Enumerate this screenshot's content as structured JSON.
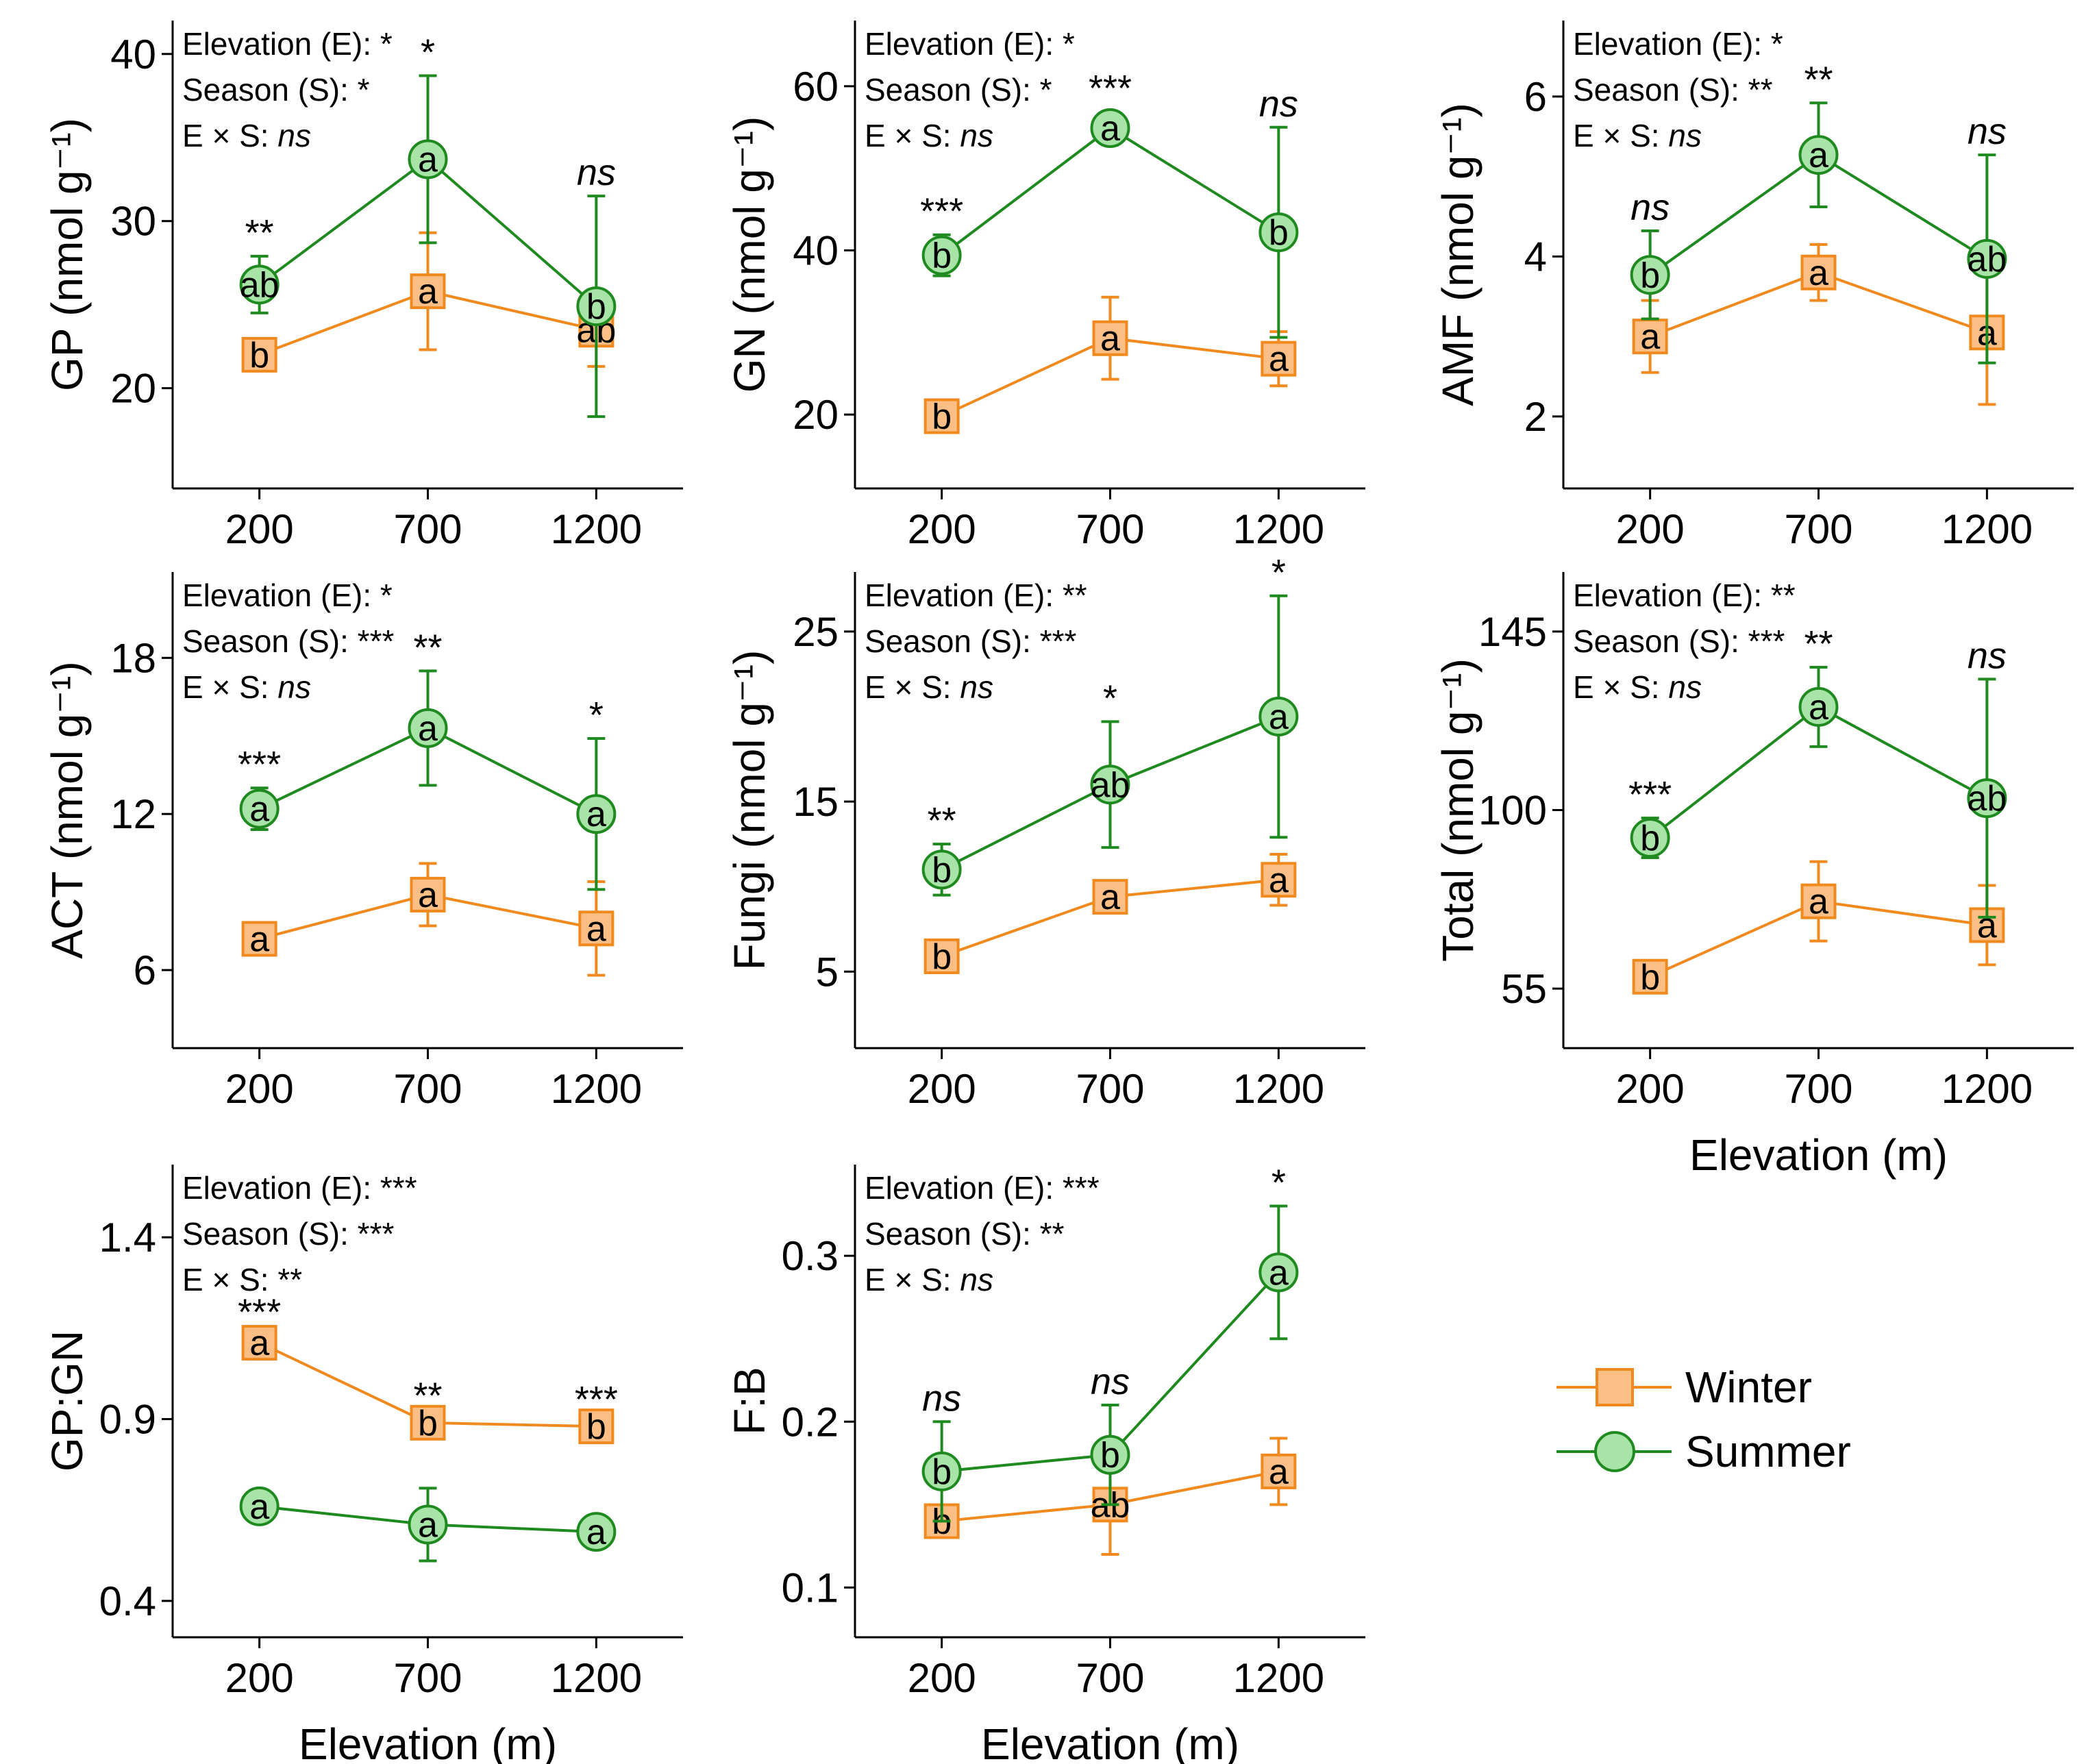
{
  "colors": {
    "winter_line": "#f08a1f",
    "winter_fill": "#fbbf86",
    "summer_line": "#1f8a1f",
    "summer_fill": "#a8e3a8"
  },
  "legend": [
    {
      "label": "Winter",
      "marker": "square"
    },
    {
      "label": "Summer",
      "marker": "circle"
    }
  ],
  "chart_data": [
    {
      "id": "gp",
      "type": "line",
      "ylabel": "GP (nmol g⁻¹)",
      "xlabel": "",
      "categories": [
        "200",
        "700",
        "1200"
      ],
      "ylim": [
        14,
        42
      ],
      "yticks": [
        20,
        30,
        40
      ],
      "stats": [
        "Elevation (E): *",
        "Season (S): *",
        "E × S: ns"
      ],
      "series": [
        {
          "name": "Winter",
          "values": [
            22.0,
            25.8,
            23.5
          ],
          "err": [
            0.8,
            3.5,
            2.2
          ],
          "letters": [
            "b",
            "a",
            "ab"
          ]
        },
        {
          "name": "Summer",
          "values": [
            26.2,
            33.7,
            24.9
          ],
          "err": [
            1.7,
            5.0,
            6.6
          ],
          "letters": [
            "ab",
            "a",
            "b"
          ]
        }
      ],
      "sig": [
        "**",
        "*",
        "ns"
      ]
    },
    {
      "id": "gn",
      "type": "line",
      "ylabel": "GN (nmol g⁻¹)",
      "xlabel": "",
      "categories": [
        "200",
        "700",
        "1200"
      ],
      "ylim": [
        11,
        68
      ],
      "yticks": [
        20,
        40,
        60
      ],
      "stats": [
        "Elevation (E): *",
        "Season (S): *",
        "E × S: ns"
      ],
      "series": [
        {
          "name": "Winter",
          "values": [
            19.8,
            29.3,
            26.8
          ],
          "err": [
            1.5,
            5.0,
            3.3
          ],
          "letters": [
            "b",
            "a",
            "a"
          ]
        },
        {
          "name": "Summer",
          "values": [
            39.4,
            54.9,
            42.2
          ],
          "err": [
            2.5,
            2.0,
            12.8
          ],
          "letters": [
            "b",
            "a",
            "b"
          ]
        }
      ],
      "sig": [
        "***",
        "***",
        "ns"
      ]
    },
    {
      "id": "amf",
      "type": "line",
      "ylabel": "AMF (nmol g⁻¹)",
      "xlabel": "",
      "categories": [
        "200",
        "700",
        "1200"
      ],
      "ylim": [
        1.1,
        6.95
      ],
      "yticks": [
        2,
        4,
        6
      ],
      "stats": [
        "Elevation (E): *",
        "Season (S): **",
        "E × S: ns"
      ],
      "series": [
        {
          "name": "Winter",
          "values": [
            3.0,
            3.8,
            3.05
          ],
          "err": [
            0.45,
            0.35,
            0.9
          ],
          "letters": [
            "a",
            "a",
            "a"
          ]
        },
        {
          "name": "Summer",
          "values": [
            3.77,
            5.27,
            3.97
          ],
          "err": [
            0.55,
            0.65,
            1.3
          ],
          "letters": [
            "b",
            "a",
            "ab"
          ]
        }
      ],
      "sig": [
        "ns",
        "**",
        "ns"
      ]
    },
    {
      "id": "act",
      "type": "line",
      "ylabel": "ACT (nmol g⁻¹)",
      "xlabel": "",
      "categories": [
        "200",
        "700",
        "1200"
      ],
      "ylim": [
        3.0,
        21.3
      ],
      "yticks": [
        6,
        12,
        18
      ],
      "stats": [
        "Elevation (E): *",
        "Season (S): ***",
        "E × S: ns"
      ],
      "series": [
        {
          "name": "Winter",
          "values": [
            7.2,
            8.9,
            7.6
          ],
          "err": [
            0.4,
            1.2,
            1.8
          ],
          "letters": [
            "a",
            "a",
            "a"
          ]
        },
        {
          "name": "Summer",
          "values": [
            12.2,
            15.3,
            12.0
          ],
          "err": [
            0.8,
            2.2,
            2.9
          ],
          "letters": [
            "a",
            "a",
            "a"
          ]
        }
      ],
      "sig": [
        "***",
        "**",
        "*"
      ]
    },
    {
      "id": "fungi",
      "type": "line",
      "ylabel": "Fungi (nmol g⁻¹)",
      "xlabel": "",
      "categories": [
        "200",
        "700",
        "1200"
      ],
      "ylim": [
        0.5,
        28.5
      ],
      "yticks": [
        5,
        15,
        25
      ],
      "stats": [
        "Elevation (E): **",
        "Season (S): ***",
        "E × S: ns"
      ],
      "series": [
        {
          "name": "Winter",
          "values": [
            5.9,
            9.4,
            10.4
          ],
          "err": [
            0.6,
            0.6,
            1.5
          ],
          "letters": [
            "b",
            "a",
            "a"
          ]
        },
        {
          "name": "Summer",
          "values": [
            11.0,
            16.0,
            20.0
          ],
          "err": [
            1.5,
            3.7,
            7.1
          ],
          "letters": [
            "b",
            "ab",
            "a"
          ]
        }
      ],
      "sig": [
        "**",
        "*",
        "*"
      ]
    },
    {
      "id": "total",
      "type": "line",
      "ylabel": "Total (nmol g⁻¹)",
      "xlabel": "Elevation (m)",
      "categories": [
        "200",
        "700",
        "1200"
      ],
      "ylim": [
        40,
        160
      ],
      "yticks": [
        55,
        100,
        145
      ],
      "stats": [
        "Elevation (E): **",
        "Season (S): ***",
        "E × S: ns"
      ],
      "series": [
        {
          "name": "Winter",
          "values": [
            58,
            77,
            71
          ],
          "err": [
            3,
            10,
            10
          ],
          "letters": [
            "b",
            "a",
            "a"
          ]
        },
        {
          "name": "Summer",
          "values": [
            93,
            126,
            103
          ],
          "err": [
            5,
            10,
            30
          ],
          "letters": [
            "b",
            "a",
            "ab"
          ]
        }
      ],
      "sig": [
        "***",
        "**",
        "ns"
      ]
    },
    {
      "id": "gpgn",
      "type": "line",
      "ylabel": "GP:GN",
      "xlabel": "Elevation (m)",
      "categories": [
        "200",
        "700",
        "1200"
      ],
      "ylim": [
        0.3,
        1.6
      ],
      "yticks": [
        0.4,
        0.9,
        1.4
      ],
      "stats": [
        "Elevation (E): ***",
        "Season (S): ***",
        "E × S: **"
      ],
      "series": [
        {
          "name": "Winter",
          "values": [
            1.11,
            0.89,
            0.88
          ],
          "err": [
            0.02,
            0.01,
            0.01
          ],
          "letters": [
            "a",
            "b",
            "b"
          ]
        },
        {
          "name": "Summer",
          "values": [
            0.66,
            0.61,
            0.59
          ],
          "err": [
            0.01,
            0.1,
            0.01
          ],
          "letters": [
            "a",
            "a",
            "a"
          ]
        }
      ],
      "sig": [
        "***",
        "**",
        "***"
      ]
    },
    {
      "id": "fb",
      "type": "line",
      "ylabel": "F:B",
      "xlabel": "Elevation (m)",
      "categories": [
        "200",
        "700",
        "1200"
      ],
      "ylim": [
        0.07,
        0.355
      ],
      "yticks": [
        0.1,
        0.2,
        0.3
      ],
      "stats": [
        "Elevation (E): ***",
        "Season (S): **",
        "E × S: ns"
      ],
      "series": [
        {
          "name": "Winter",
          "values": [
            0.14,
            0.15,
            0.17
          ],
          "err": [
            0.005,
            0.03,
            0.02
          ],
          "letters": [
            "b",
            "ab",
            "a"
          ]
        },
        {
          "name": "Summer",
          "values": [
            0.17,
            0.18,
            0.29
          ],
          "err": [
            0.03,
            0.03,
            0.04
          ],
          "letters": [
            "b",
            "b",
            "a"
          ]
        }
      ],
      "sig": [
        "ns",
        "ns",
        "*"
      ]
    }
  ]
}
